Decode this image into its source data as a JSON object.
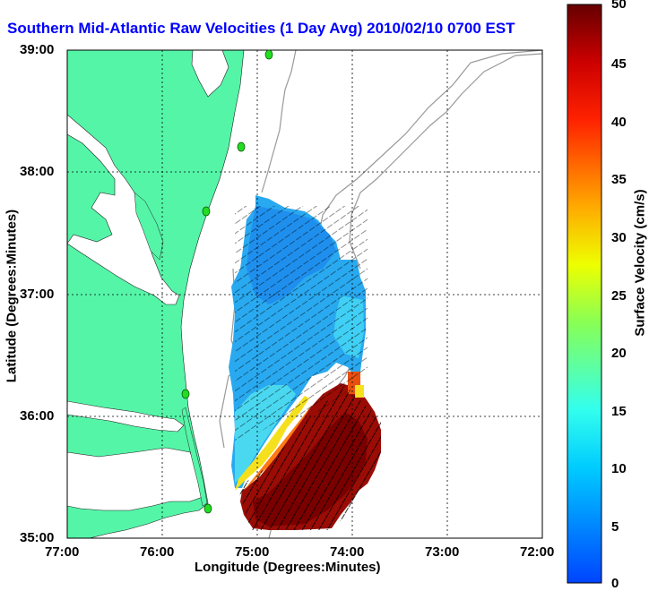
{
  "title": "Southern Mid-Atlantic Raw Velocities (1 Day Avg) 2010/02/10 0700 EST",
  "x_axis": {
    "label": "Longitude (Degrees:Minutes)",
    "ticks": [
      "77:00",
      "76:00",
      "75:00",
      "74:00",
      "73:00",
      "72:00"
    ]
  },
  "y_axis": {
    "label": "Latitude (Degrees:Minutes)",
    "ticks": [
      "39:00",
      "38:00",
      "37:00",
      "36:00",
      "35:00"
    ]
  },
  "colorbar": {
    "label": "Surface Velocity (cm/s)",
    "ticks": [
      "50",
      "45",
      "40",
      "35",
      "30",
      "25",
      "20",
      "15",
      "10",
      "5",
      "0"
    ],
    "min": 0,
    "max": 50
  },
  "map": {
    "land_color": "#55f5a8",
    "water_color": "#ffffff",
    "bathymetry_color": "#999999",
    "station_color": "#22cc22",
    "grid": true
  }
}
